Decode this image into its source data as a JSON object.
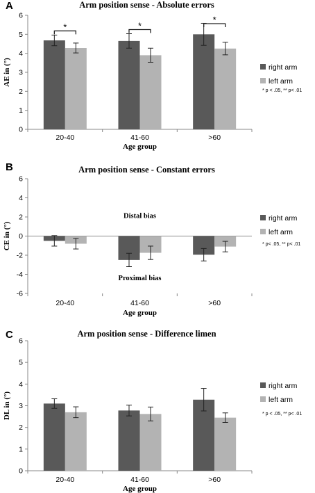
{
  "chart_data": [
    {
      "panel": "A",
      "type": "bar",
      "title": "Arm position sense -  Absolute errors",
      "xlabel": "Age group",
      "ylabel": "AE in (°)",
      "categories": [
        "20-40",
        "41-60",
        ">60"
      ],
      "ylim": [
        0,
        6
      ],
      "yticks": [
        "0",
        "1",
        "2",
        "3",
        "4",
        "5",
        "6"
      ],
      "series": [
        {
          "name": "right arm",
          "color": "#595959",
          "values": [
            4.68,
            4.65,
            5.0
          ],
          "errors": [
            0.28,
            0.38,
            0.58
          ]
        },
        {
          "name": "left arm",
          "color": "#b3b3b3",
          "values": [
            4.28,
            3.9,
            4.25
          ],
          "errors": [
            0.26,
            0.37,
            0.33
          ]
        }
      ],
      "significance": [
        "*",
        "*",
        "*"
      ],
      "note": "* p < .05, ** p< .01",
      "annotations": [],
      "legend": "right"
    },
    {
      "panel": "B",
      "type": "bar",
      "title": "Arm position sense -  Constant errors",
      "xlabel": "Age group",
      "ylabel": "CE in (°)",
      "categories": [
        "20-40",
        "41-60",
        ">60"
      ],
      "ylim": [
        -6,
        6
      ],
      "yticks": [
        "-6",
        "-4",
        "-2",
        "0",
        "2",
        "4",
        "6"
      ],
      "series": [
        {
          "name": "right arm",
          "color": "#595959",
          "values": [
            -0.5,
            -2.5,
            -1.95
          ],
          "errors": [
            0.55,
            0.7,
            0.65
          ]
        },
        {
          "name": "left arm",
          "color": "#b3b3b3",
          "values": [
            -0.8,
            -1.75,
            -1.1
          ],
          "errors": [
            0.55,
            0.7,
            0.55
          ]
        }
      ],
      "significance": [],
      "note": "* p< .05, ** p< .01",
      "annotations": [
        "Distal bias",
        "Proximal bias"
      ],
      "legend": "right"
    },
    {
      "panel": "C",
      "type": "bar",
      "title": "Arm position sense - Difference limen",
      "xlabel": "Age group",
      "ylabel": "DL in (°)",
      "categories": [
        "20-40",
        "41-60",
        ">60"
      ],
      "ylim": [
        0,
        6
      ],
      "yticks": [
        "0",
        "1",
        "2",
        "3",
        "4",
        "5",
        "6"
      ],
      "series": [
        {
          "name": "right arm",
          "color": "#595959",
          "values": [
            3.1,
            2.78,
            3.28
          ],
          "errors": [
            0.22,
            0.25,
            0.52
          ]
        },
        {
          "name": "left arm",
          "color": "#b3b3b3",
          "values": [
            2.7,
            2.62,
            2.45
          ],
          "errors": [
            0.25,
            0.32,
            0.22
          ]
        }
      ],
      "significance": [],
      "note": "* p < .05, ** p< .01",
      "annotations": [],
      "legend": "right"
    }
  ]
}
